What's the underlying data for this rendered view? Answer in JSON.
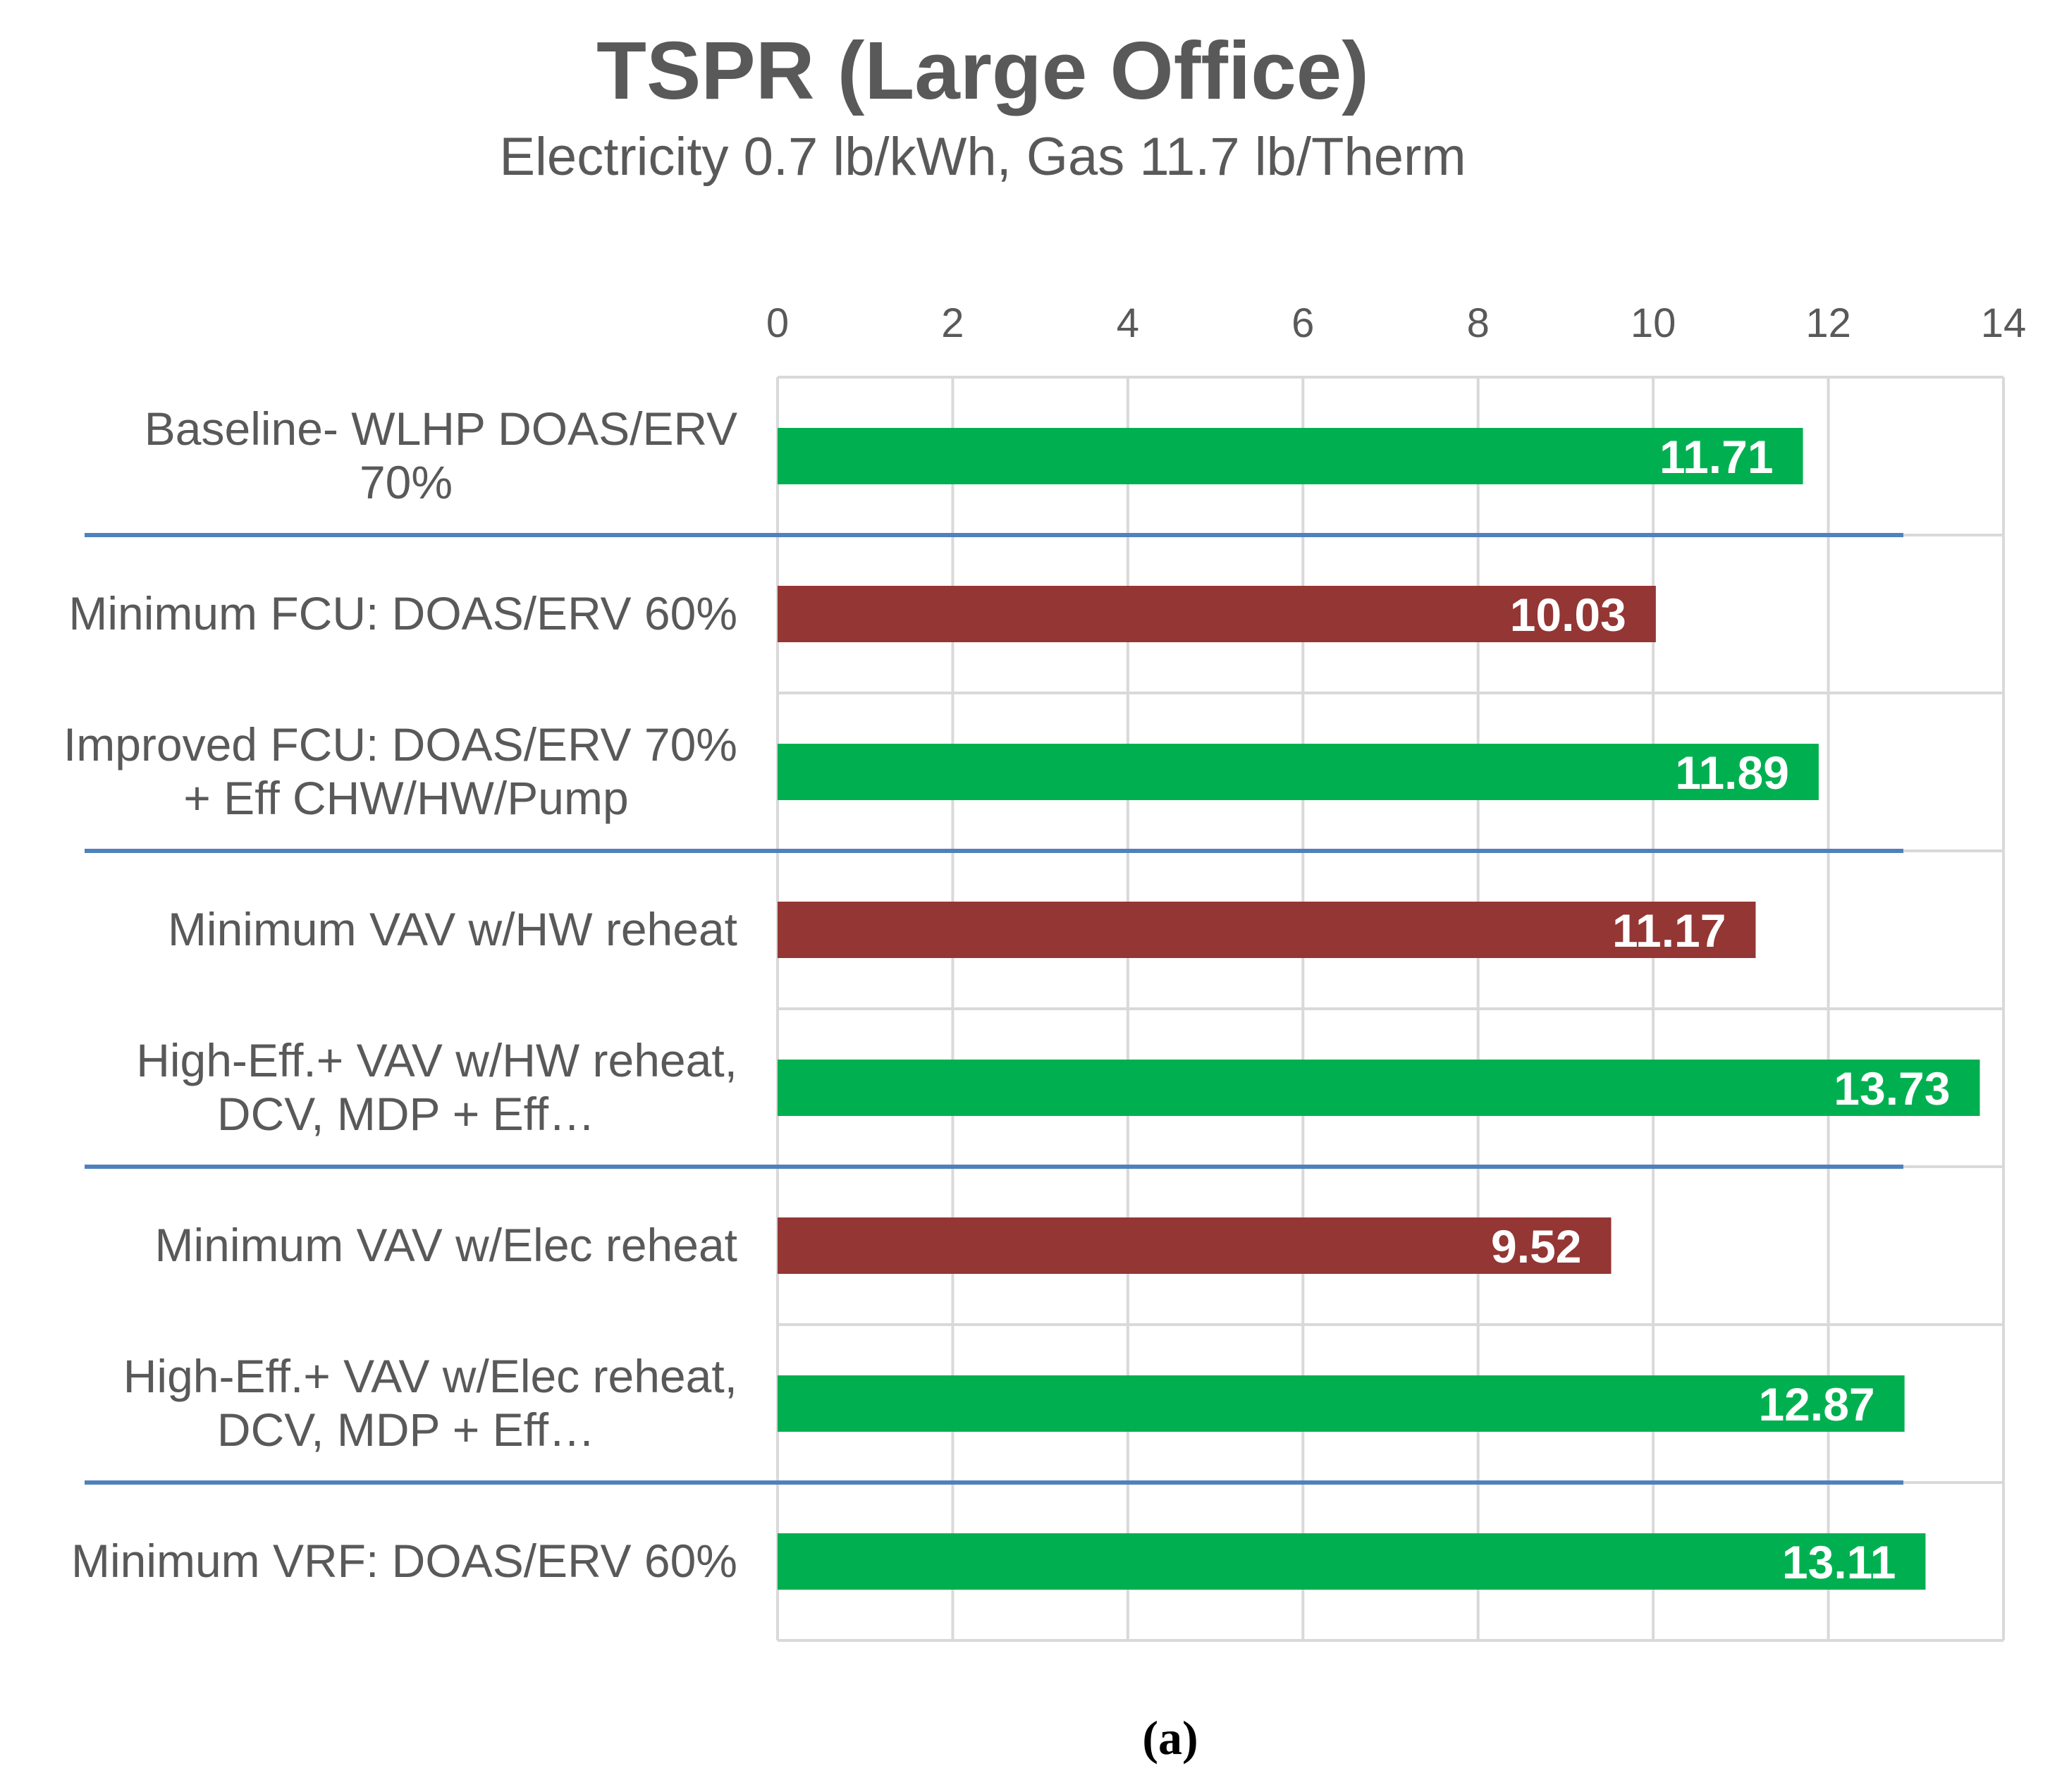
{
  "chart_data": {
    "type": "bar",
    "orientation": "horizontal",
    "title": "TSPR (Large Office)",
    "subtitle": "Electricity 0.7 lb/kWh, Gas 11.7 lb/Therm",
    "xlim": [
      0,
      14
    ],
    "x_ticks": [
      "0",
      "2",
      "4",
      "6",
      "8",
      "10",
      "12",
      "14"
    ],
    "grid": true,
    "axis_position": "top",
    "categories": [
      [
        "Baseline- WLHP DOAS/ERV",
        "70%"
      ],
      [
        "Minimum FCU: DOAS/ERV 60%"
      ],
      [
        "Improved FCU: DOAS/ERV 70%",
        "+ Eff CHW/HW/Pump"
      ],
      [
        "Minimum VAV w/HW reheat"
      ],
      [
        "High-Eff.+ VAV w/HW reheat,",
        "DCV, MDP + Eff…"
      ],
      [
        "Minimum VAV w/Elec reheat"
      ],
      [
        "High-Eff.+ VAV w/Elec reheat,",
        "DCV, MDP + Eff…"
      ],
      [
        "Minimum  VRF: DOAS/ERV 60%"
      ]
    ],
    "values": [
      11.71,
      10.03,
      11.89,
      11.17,
      13.73,
      9.52,
      12.87,
      13.11
    ],
    "value_labels": [
      "11.71",
      "10.03",
      "11.89",
      "11.17",
      "13.73",
      "9.52",
      "12.87",
      "13.11"
    ],
    "bar_colors": [
      "#00B050",
      "#943634",
      "#00B050",
      "#943634",
      "#00B050",
      "#943634",
      "#00B050",
      "#00B050"
    ],
    "group_separators_after_index": [
      0,
      2,
      4,
      6
    ],
    "separator_color": "#4F81BD",
    "grid_color": "#D9D9D9"
  },
  "caption": "(a)"
}
